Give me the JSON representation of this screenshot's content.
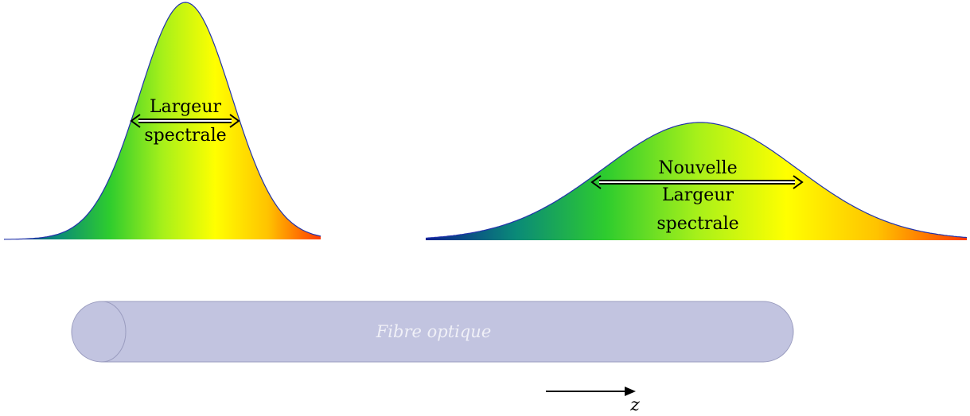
{
  "pulse_before": {
    "label_line1": "Largeur",
    "label_line2": "spectrale"
  },
  "pulse_after": {
    "label_line1": "Nouvelle",
    "label_line2": "Largeur",
    "label_line3": "spectrale"
  },
  "fibre": {
    "label": "Fibre optique"
  },
  "axis": {
    "label": "z"
  },
  "colors": {
    "pulse_outline": "#2233aa",
    "fibre_fill": "#c2c4e0",
    "fibre_edge": "#9a9cbf",
    "arrow": "#000000",
    "spectrum": [
      "#0a1f8f",
      "#0a8a78",
      "#2ecc2e",
      "#a6f01a",
      "#ffff00",
      "#ffc300",
      "#ff3a00"
    ]
  }
}
